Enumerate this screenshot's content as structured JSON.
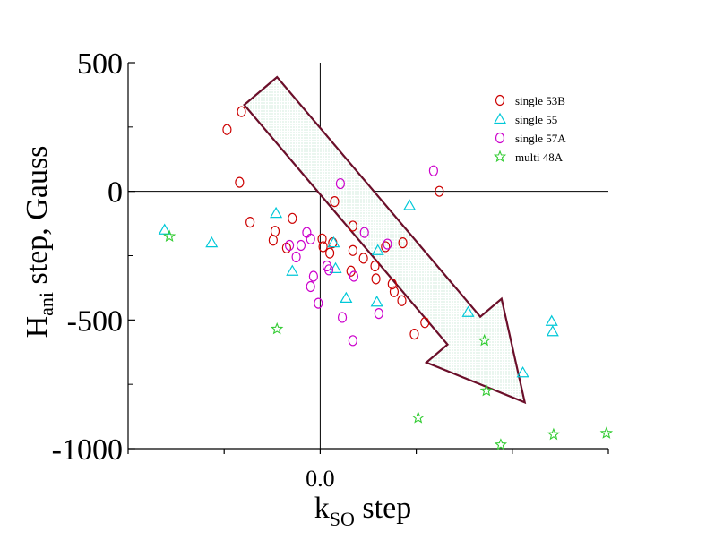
{
  "chart_data": {
    "type": "scatter",
    "title": "",
    "xlabel": {
      "main": "k",
      "sub": "SO",
      "rest": " step"
    },
    "ylabel": {
      "main": "H",
      "sub": "ani",
      "rest": " step, Gauss"
    },
    "xlim": [
      -0.2,
      0.3
    ],
    "ylim": [
      -1000,
      500
    ],
    "xticks": [
      0.0
    ],
    "xtick_labels": [
      "0.0"
    ],
    "yticks": [
      500,
      0,
      -500,
      -1000
    ],
    "ytick_labels": [
      "500",
      "0",
      "-500",
      "-1000"
    ],
    "zero_lines": true,
    "legend_position": "top-right",
    "arrow": {
      "from": [
        -0.062,
        390
      ],
      "to": [
        0.213,
        -820
      ]
    },
    "series": [
      {
        "name": "single 53B",
        "marker": "circle",
        "color": "#cc0000",
        "points": [
          [
            -0.097,
            240
          ],
          [
            -0.082,
            310
          ],
          [
            -0.084,
            35
          ],
          [
            -0.073,
            -120
          ],
          [
            -0.049,
            -190
          ],
          [
            -0.047,
            -155
          ],
          [
            -0.035,
            -220
          ],
          [
            -0.029,
            -105
          ],
          [
            0.002,
            -185
          ],
          [
            0.003,
            -215
          ],
          [
            0.01,
            -240
          ],
          [
            0.013,
            -200
          ],
          [
            0.015,
            -40
          ],
          [
            0.032,
            -310
          ],
          [
            0.034,
            -230
          ],
          [
            0.034,
            -135
          ],
          [
            0.045,
            -260
          ],
          [
            0.057,
            -290
          ],
          [
            0.058,
            -340
          ],
          [
            0.068,
            -215
          ],
          [
            0.075,
            -360
          ],
          [
            0.077,
            -390
          ],
          [
            0.085,
            -425
          ],
          [
            0.086,
            -200
          ],
          [
            0.098,
            -555
          ],
          [
            0.109,
            -510
          ],
          [
            0.124,
            0
          ]
        ]
      },
      {
        "name": "single 55",
        "color": "#00c8d8",
        "marker": "triangle",
        "points": [
          [
            -0.162,
            -150
          ],
          [
            -0.113,
            -200
          ],
          [
            -0.046,
            -85
          ],
          [
            -0.029,
            -310
          ],
          [
            0.014,
            -200
          ],
          [
            0.016,
            -300
          ],
          [
            0.027,
            -415
          ],
          [
            0.059,
            -430
          ],
          [
            0.06,
            -230
          ],
          [
            0.093,
            -55
          ],
          [
            0.154,
            -470
          ],
          [
            0.211,
            -705
          ],
          [
            0.241,
            -505
          ],
          [
            0.242,
            -545
          ]
        ]
      },
      {
        "name": "single 57A",
        "marker": "circle",
        "color": "#cc00cc",
        "points": [
          [
            -0.032,
            -210
          ],
          [
            -0.025,
            -255
          ],
          [
            -0.02,
            -210
          ],
          [
            -0.014,
            -160
          ],
          [
            -0.01,
            -185
          ],
          [
            -0.01,
            -370
          ],
          [
            -0.007,
            -330
          ],
          [
            -0.002,
            -435
          ],
          [
            0.007,
            -290
          ],
          [
            0.009,
            -305
          ],
          [
            0.021,
            30
          ],
          [
            0.023,
            -490
          ],
          [
            0.034,
            -580
          ],
          [
            0.035,
            -330
          ],
          [
            0.046,
            -160
          ],
          [
            0.061,
            -475
          ],
          [
            0.07,
            -205
          ],
          [
            0.118,
            80
          ]
        ]
      },
      {
        "name": "multi 48A",
        "marker": "star",
        "color": "#33cc33",
        "points": [
          [
            -0.157,
            -175
          ],
          [
            -0.045,
            -535
          ],
          [
            0.102,
            -880
          ],
          [
            0.171,
            -580
          ],
          [
            0.173,
            -775
          ],
          [
            0.188,
            -985
          ],
          [
            0.243,
            -945
          ],
          [
            0.298,
            -940
          ]
        ]
      }
    ]
  }
}
